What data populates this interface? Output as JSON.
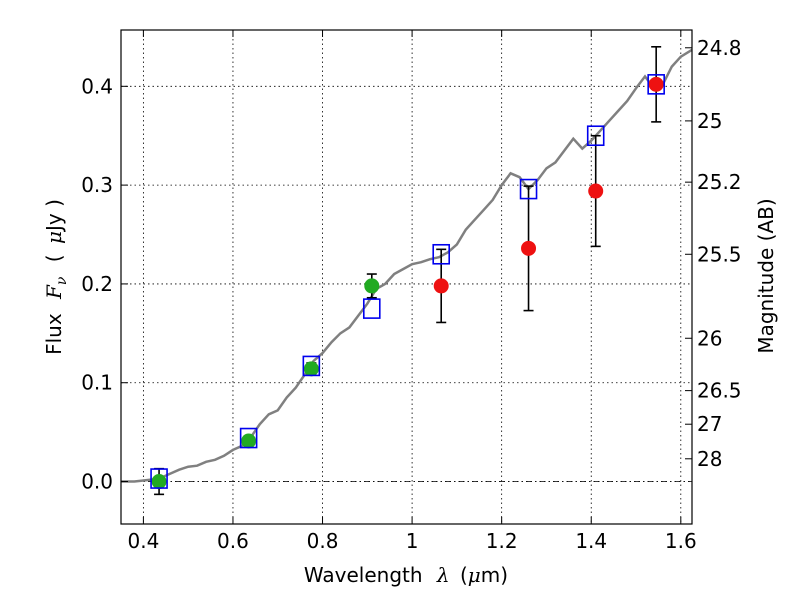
{
  "chart_data": {
    "type": "scatter",
    "xlabel": {
      "prefix": "Wavelength",
      "symbol": "λ",
      "unit_open": "(",
      "unit_mu": "μ",
      "unit_rest": "m)"
    },
    "ylabel": {
      "prefix": "Flux",
      "symbol": "F",
      "sub": "ν",
      "unit_open": "(",
      "unit_mu": "μ",
      "unit_rest": "Jy )"
    },
    "y2label": "Magnitude (AB)",
    "xlim": [
      0.35,
      1.625
    ],
    "ylim": [
      -0.043,
      0.457
    ],
    "grid": true,
    "x_ticks": [
      0.4,
      0.6,
      0.8,
      1.0,
      1.2,
      1.4,
      1.6
    ],
    "x_tick_labels": [
      "0.4",
      "0.6",
      "0.8",
      "1",
      "1.2",
      "1.4",
      "1.6"
    ],
    "y_ticks": [
      0.0,
      0.1,
      0.2,
      0.3,
      0.4
    ],
    "y_tick_labels": [
      "0.0",
      "0.1",
      "0.2",
      "0.3",
      "0.4"
    ],
    "y2_ticks": [
      {
        "label": "24.8",
        "flux": 0.439
      },
      {
        "label": "25",
        "flux": 0.365
      },
      {
        "label": "25.2",
        "flux": 0.303
      },
      {
        "label": "25.5",
        "flux": 0.23
      },
      {
        "label": "26",
        "flux": 0.145
      },
      {
        "label": "26.5",
        "flux": 0.092
      },
      {
        "label": "27",
        "flux": 0.058
      },
      {
        "label": "28",
        "flux": 0.023
      }
    ],
    "zero_line": 0.0,
    "colors": {
      "model": "#808080",
      "green": "#22aa22",
      "red": "#ee1111",
      "square": "#0000ee",
      "errorbar": "#000000",
      "grid": "#000000"
    },
    "series": [
      {
        "kind": "model_spectrum",
        "points": [
          [
            0.35,
            0.0
          ],
          [
            0.38,
            0.0
          ],
          [
            0.4,
            0.001
          ],
          [
            0.42,
            0.002
          ],
          [
            0.44,
            0.004
          ],
          [
            0.46,
            0.008
          ],
          [
            0.48,
            0.012
          ],
          [
            0.5,
            0.015
          ],
          [
            0.52,
            0.016
          ],
          [
            0.54,
            0.02
          ],
          [
            0.56,
            0.022
          ],
          [
            0.58,
            0.026
          ],
          [
            0.6,
            0.032
          ],
          [
            0.62,
            0.036
          ],
          [
            0.64,
            0.045
          ],
          [
            0.66,
            0.058
          ],
          [
            0.68,
            0.068
          ],
          [
            0.7,
            0.072
          ],
          [
            0.72,
            0.085
          ],
          [
            0.74,
            0.095
          ],
          [
            0.76,
            0.108
          ],
          [
            0.78,
            0.122
          ],
          [
            0.8,
            0.13
          ],
          [
            0.82,
            0.141
          ],
          [
            0.84,
            0.15
          ],
          [
            0.86,
            0.156
          ],
          [
            0.88,
            0.168
          ],
          [
            0.9,
            0.18
          ],
          [
            0.92,
            0.195
          ],
          [
            0.94,
            0.2
          ],
          [
            0.96,
            0.21
          ],
          [
            0.98,
            0.215
          ],
          [
            1.0,
            0.22
          ],
          [
            1.02,
            0.222
          ],
          [
            1.04,
            0.225
          ],
          [
            1.06,
            0.227
          ],
          [
            1.08,
            0.232
          ],
          [
            1.1,
            0.24
          ],
          [
            1.12,
            0.255
          ],
          [
            1.14,
            0.265
          ],
          [
            1.16,
            0.275
          ],
          [
            1.18,
            0.285
          ],
          [
            1.2,
            0.3
          ],
          [
            1.22,
            0.312
          ],
          [
            1.24,
            0.308
          ],
          [
            1.26,
            0.296
          ],
          [
            1.28,
            0.305
          ],
          [
            1.3,
            0.317
          ],
          [
            1.32,
            0.323
          ],
          [
            1.34,
            0.335
          ],
          [
            1.36,
            0.347
          ],
          [
            1.38,
            0.337
          ],
          [
            1.4,
            0.345
          ],
          [
            1.42,
            0.355
          ],
          [
            1.44,
            0.365
          ],
          [
            1.46,
            0.375
          ],
          [
            1.48,
            0.385
          ],
          [
            1.5,
            0.398
          ],
          [
            1.52,
            0.41
          ],
          [
            1.54,
            0.398
          ],
          [
            1.56,
            0.402
          ],
          [
            1.58,
            0.42
          ],
          [
            1.6,
            0.43
          ],
          [
            1.625,
            0.437
          ]
        ]
      },
      {
        "kind": "green_points",
        "points": [
          {
            "x": 0.435,
            "y": 0.0,
            "err": 0.013
          },
          {
            "x": 0.635,
            "y": 0.041,
            "err": 0.005
          },
          {
            "x": 0.775,
            "y": 0.114,
            "err": 0.006
          },
          {
            "x": 0.91,
            "y": 0.198,
            "err": 0.012
          }
        ]
      },
      {
        "kind": "red_points",
        "points": [
          {
            "x": 1.065,
            "y": 0.198,
            "err": 0.037
          },
          {
            "x": 1.26,
            "y": 0.236,
            "err": 0.063
          },
          {
            "x": 1.41,
            "y": 0.294,
            "err": 0.056
          },
          {
            "x": 1.545,
            "y": 0.402,
            "err": 0.038
          }
        ]
      },
      {
        "kind": "model_squares",
        "points": [
          {
            "x": 0.435,
            "y": 0.003
          },
          {
            "x": 0.635,
            "y": 0.044
          },
          {
            "x": 0.775,
            "y": 0.117
          },
          {
            "x": 0.91,
            "y": 0.175
          },
          {
            "x": 1.065,
            "y": 0.23
          },
          {
            "x": 1.26,
            "y": 0.296
          },
          {
            "x": 1.41,
            "y": 0.35
          },
          {
            "x": 1.545,
            "y": 0.402
          }
        ]
      }
    ]
  }
}
